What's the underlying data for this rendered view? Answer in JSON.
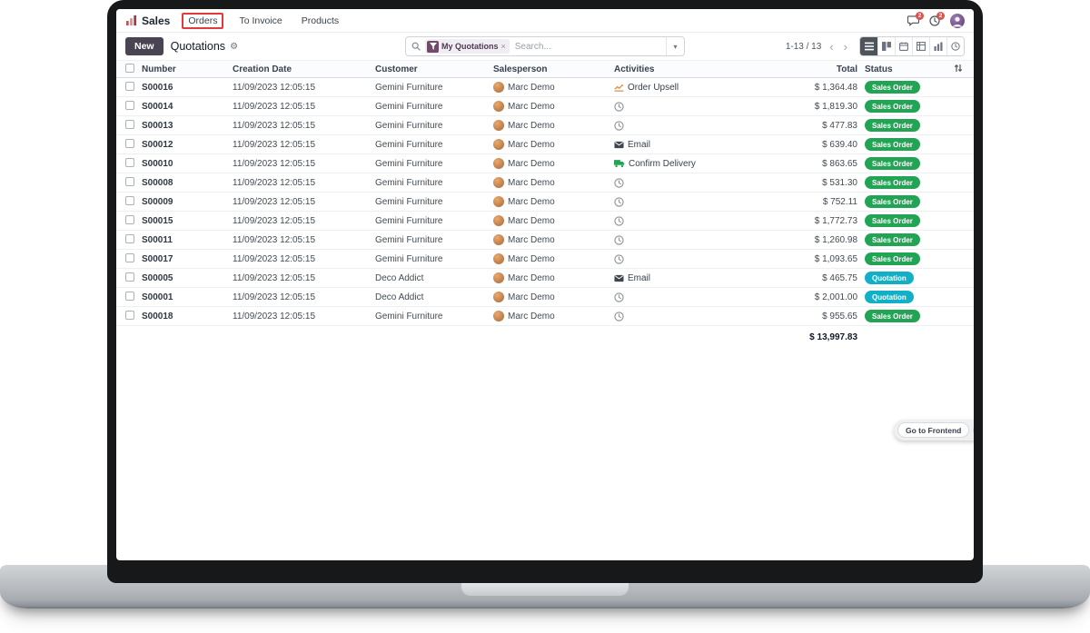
{
  "nav": {
    "app_label": "Sales",
    "menus": [
      {
        "label": "Orders",
        "highlighted": true
      },
      {
        "label": "To Invoice",
        "highlighted": false
      },
      {
        "label": "Products",
        "highlighted": false
      }
    ],
    "message_count": "2",
    "activity_count": "2"
  },
  "control": {
    "new_label": "New",
    "breadcrumb": "Quotations",
    "search": {
      "facet_label": "My Quotations",
      "placeholder": "Search..."
    },
    "pager_range": "1-13 / 13"
  },
  "table": {
    "headers": {
      "number": "Number",
      "date": "Creation Date",
      "customer": "Customer",
      "salesperson": "Salesperson",
      "activities": "Activities",
      "total": "Total",
      "status": "Status"
    },
    "rows": [
      {
        "number": "S00016",
        "date": "11/09/2023 12:05:15",
        "customer": "Gemini Furniture",
        "salesperson": "Marc Demo",
        "activity": {
          "type": "upsell",
          "label": "Order Upsell"
        },
        "total": "$ 1,364.48",
        "status": "Sales Order"
      },
      {
        "number": "S00014",
        "date": "11/09/2023 12:05:15",
        "customer": "Gemini Furniture",
        "salesperson": "Marc Demo",
        "activity": {
          "type": "clock",
          "label": ""
        },
        "total": "$ 1,819.30",
        "status": "Sales Order"
      },
      {
        "number": "S00013",
        "date": "11/09/2023 12:05:15",
        "customer": "Gemini Furniture",
        "salesperson": "Marc Demo",
        "activity": {
          "type": "clock",
          "label": ""
        },
        "total": "$ 477.83",
        "status": "Sales Order"
      },
      {
        "number": "S00012",
        "date": "11/09/2023 12:05:15",
        "customer": "Gemini Furniture",
        "salesperson": "Marc Demo",
        "activity": {
          "type": "email",
          "label": "Email"
        },
        "total": "$ 639.40",
        "status": "Sales Order"
      },
      {
        "number": "S00010",
        "date": "11/09/2023 12:05:15",
        "customer": "Gemini Furniture",
        "salesperson": "Marc Demo",
        "activity": {
          "type": "delivery",
          "label": "Confirm Delivery"
        },
        "total": "$ 863.65",
        "status": "Sales Order"
      },
      {
        "number": "S00008",
        "date": "11/09/2023 12:05:15",
        "customer": "Gemini Furniture",
        "salesperson": "Marc Demo",
        "activity": {
          "type": "clock",
          "label": ""
        },
        "total": "$ 531.30",
        "status": "Sales Order"
      },
      {
        "number": "S00009",
        "date": "11/09/2023 12:05:15",
        "customer": "Gemini Furniture",
        "salesperson": "Marc Demo",
        "activity": {
          "type": "clock",
          "label": ""
        },
        "total": "$ 752.11",
        "status": "Sales Order"
      },
      {
        "number": "S00015",
        "date": "11/09/2023 12:05:15",
        "customer": "Gemini Furniture",
        "salesperson": "Marc Demo",
        "activity": {
          "type": "clock",
          "label": ""
        },
        "total": "$ 1,772.73",
        "status": "Sales Order"
      },
      {
        "number": "S00011",
        "date": "11/09/2023 12:05:15",
        "customer": "Gemini Furniture",
        "salesperson": "Marc Demo",
        "activity": {
          "type": "clock",
          "label": ""
        },
        "total": "$ 1,260.98",
        "status": "Sales Order"
      },
      {
        "number": "S00017",
        "date": "11/09/2023 12:05:15",
        "customer": "Gemini Furniture",
        "salesperson": "Marc Demo",
        "activity": {
          "type": "clock",
          "label": ""
        },
        "total": "$ 1,093.65",
        "status": "Sales Order"
      },
      {
        "number": "S00005",
        "date": "11/09/2023 12:05:15",
        "customer": "Deco Addict",
        "salesperson": "Marc Demo",
        "activity": {
          "type": "email",
          "label": "Email"
        },
        "total": "$ 465.75",
        "status": "Quotation"
      },
      {
        "number": "S00001",
        "date": "11/09/2023 12:05:15",
        "customer": "Deco Addict",
        "salesperson": "Marc Demo",
        "activity": {
          "type": "clock",
          "label": ""
        },
        "total": "$ 2,001.00",
        "status": "Quotation"
      },
      {
        "number": "S00018",
        "date": "11/09/2023 12:05:15",
        "customer": "Gemini Furniture",
        "salesperson": "Marc Demo",
        "activity": {
          "type": "clock",
          "label": ""
        },
        "total": "$ 955.65",
        "status": "Sales Order"
      }
    ],
    "footer_total": "$ 13,997.83"
  },
  "overlay": {
    "frontend_label": "Go to Frontend"
  },
  "colors": {
    "status": {
      "Sales Order": "#23a455",
      "Quotation": "#12b0c6"
    },
    "tutorial_highlight": "#e23b3b",
    "brand_purple": "#714B67",
    "new_button": "#4a4452"
  }
}
